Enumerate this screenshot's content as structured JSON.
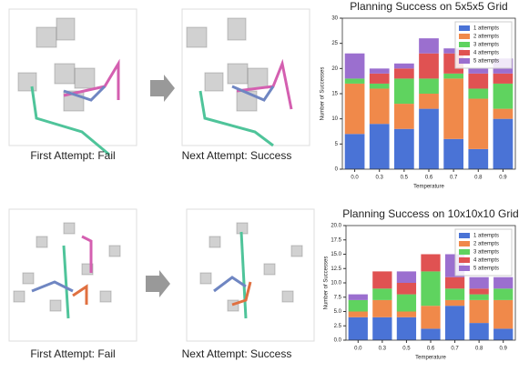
{
  "panels": [
    {
      "caption": "First Attempt: Fail"
    },
    {
      "caption": "Next Attempt: Success"
    },
    {
      "caption": "First Attempt: Fail"
    },
    {
      "caption": "Next Attempt: Success"
    }
  ],
  "chart_data": [
    {
      "type": "stacked-bar",
      "title": "Planning Success on 5x5x5 Grid",
      "xlabel": "Temperature",
      "ylabel": "Number of Successes",
      "categories": [
        "0.0",
        "0.3",
        "0.5",
        "0.6",
        "0.7",
        "0.8",
        "0.9"
      ],
      "series": [
        {
          "name": "1 attempts",
          "color": "#4a73d6",
          "values": [
            7,
            9,
            8,
            12,
            6,
            4,
            10
          ]
        },
        {
          "name": "2 attempts",
          "color": "#f0894a",
          "values": [
            10,
            7,
            5,
            3,
            12,
            10,
            2
          ]
        },
        {
          "name": "3 attempts",
          "color": "#5fd35f",
          "values": [
            1,
            1,
            5,
            3,
            1,
            2,
            5
          ]
        },
        {
          "name": "4 attempts",
          "color": "#e05252",
          "values": [
            0,
            2,
            2,
            5,
            4,
            3,
            2
          ]
        },
        {
          "name": "5 attempts",
          "color": "#9b6fcf",
          "values": [
            5,
            1,
            1,
            3,
            1,
            1,
            3
          ]
        }
      ],
      "ylim": [
        0,
        30
      ],
      "yticks": [
        0,
        5,
        10,
        15,
        20,
        25,
        30
      ],
      "legend": "upper right"
    },
    {
      "type": "stacked-bar",
      "title": "Planning Success on 10x10x10 Grid",
      "xlabel": "Temperature",
      "ylabel": "Number of Successes",
      "categories": [
        "0.0",
        "0.3",
        "0.5",
        "0.6",
        "0.7",
        "0.8",
        "0.9"
      ],
      "series": [
        {
          "name": "1 attempts",
          "color": "#4a73d6",
          "values": [
            4,
            4,
            4,
            2,
            6,
            3,
            2
          ]
        },
        {
          "name": "2 attempts",
          "color": "#f0894a",
          "values": [
            1,
            3,
            1,
            4,
            1,
            4,
            5
          ]
        },
        {
          "name": "3 attempts",
          "color": "#5fd35f",
          "values": [
            2,
            2,
            3,
            6,
            2,
            1,
            2
          ]
        },
        {
          "name": "4 attempts",
          "color": "#e05252",
          "values": [
            0,
            3,
            2,
            3,
            2,
            1,
            0
          ]
        },
        {
          "name": "5 attempts",
          "color": "#9b6fcf",
          "values": [
            1,
            0,
            2,
            0,
            4,
            2,
            2
          ]
        }
      ],
      "ylim": [
        0,
        20
      ],
      "yticks": [
        {
          "value": 0,
          "label": "0.0"
        },
        {
          "value": 2.5,
          "label": "2.5"
        },
        {
          "value": 5,
          "label": "5.0"
        },
        {
          "value": 7.5,
          "label": "7.5"
        },
        {
          "value": 10,
          "label": "10.0"
        },
        {
          "value": 12.5,
          "label": "12.5"
        },
        {
          "value": 15,
          "label": "15.0"
        },
        {
          "value": 17.5,
          "label": "17.5"
        },
        {
          "value": 20,
          "label": "20.0"
        }
      ],
      "legend": "upper right"
    }
  ]
}
